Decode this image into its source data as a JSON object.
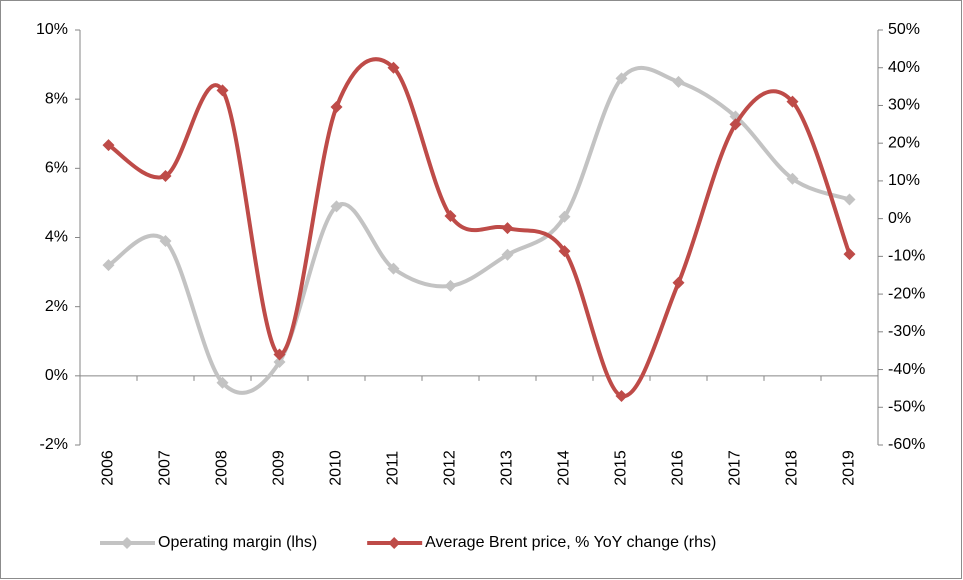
{
  "chart_data": {
    "type": "line",
    "categories": [
      "2006",
      "2007",
      "2008",
      "2009",
      "2010",
      "2011",
      "2012",
      "2013",
      "2014",
      "2015",
      "2016",
      "2017",
      "2018",
      "2019"
    ],
    "series": [
      {
        "name": "Operating margin (lhs)",
        "color": "#c3c3c3",
        "axis": "y",
        "values": [
          3.2,
          3.9,
          -0.2,
          0.4,
          4.9,
          3.1,
          2.6,
          3.5,
          4.6,
          8.6,
          8.5,
          7.5,
          5.7,
          5.1
        ]
      },
      {
        "name": "Average Brent price, % YoY change (rhs)",
        "color": "#be4b48",
        "axis": "y2",
        "values": [
          19.5,
          11.3,
          34,
          -36,
          29.6,
          40,
          0.7,
          -2.5,
          -8.6,
          -47,
          -17,
          25,
          31,
          -9.4
        ]
      }
    ],
    "ylim": [
      -2,
      10
    ],
    "yticks": [
      {
        "value": -2,
        "label": "-2%"
      },
      {
        "value": 0,
        "label": "0%"
      },
      {
        "value": 2,
        "label": "2%"
      },
      {
        "value": 4,
        "label": "4%"
      },
      {
        "value": 6,
        "label": "6%"
      },
      {
        "value": 8,
        "label": "8%"
      },
      {
        "value": 10,
        "label": "10%"
      }
    ],
    "y2lim": [
      -60,
      50
    ],
    "y2ticks": [
      {
        "value": -60,
        "label": "-60%"
      },
      {
        "value": -50,
        "label": "-50%"
      },
      {
        "value": -40,
        "label": "-40%"
      },
      {
        "value": -30,
        "label": "-30%"
      },
      {
        "value": -20,
        "label": "-20%"
      },
      {
        "value": -10,
        "label": "-10%"
      },
      {
        "value": 0,
        "label": "0%"
      },
      {
        "value": 10,
        "label": "10%"
      },
      {
        "value": 20,
        "label": "20%"
      },
      {
        "value": 30,
        "label": "30%"
      },
      {
        "value": 40,
        "label": "40%"
      },
      {
        "value": 50,
        "label": "50%"
      }
    ],
    "legend": "bottom"
  }
}
